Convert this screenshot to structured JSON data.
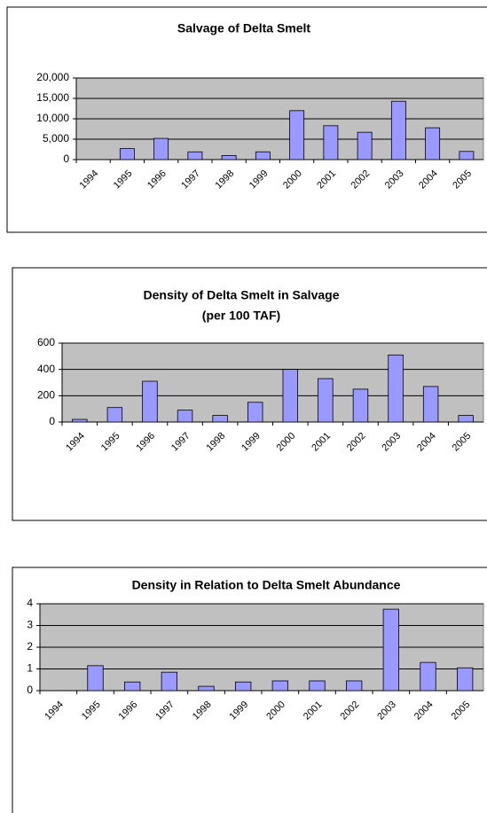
{
  "chart_data": [
    {
      "type": "bar",
      "title": "Salvage of Delta Smelt",
      "categories": [
        "1994",
        "1995",
        "1996",
        "1997",
        "1998",
        "1999",
        "2000",
        "2001",
        "2002",
        "2003",
        "2004",
        "2005"
      ],
      "values": [
        0,
        2700,
        5200,
        1900,
        1000,
        1900,
        12000,
        8300,
        6700,
        14300,
        7800,
        2000
      ],
      "color": "#9999ff",
      "ylim": [
        0,
        20000
      ],
      "yticks": [
        0,
        {
          "value": 5000,
          "label": "5,000"
        },
        {
          "value": 10000,
          "label": "10,000"
        },
        {
          "value": 15000,
          "label": "15,000"
        },
        {
          "value": 20000,
          "label": "20,000"
        }
      ],
      "grid": true
    },
    {
      "type": "bar",
      "title": "Density of Delta Smelt in Salvage",
      "subtitle": "(per 100 TAF)",
      "categories": [
        "1994",
        "1995",
        "1996",
        "1997",
        "1998",
        "1999",
        "2000",
        "2001",
        "2002",
        "2003",
        "2004",
        "2005"
      ],
      "values": [
        20,
        110,
        310,
        90,
        50,
        150,
        400,
        330,
        250,
        510,
        270,
        50
      ],
      "color": "#9999ff",
      "ylim": [
        0,
        600
      ],
      "yticks": [
        0,
        200,
        400,
        600
      ],
      "grid": true
    },
    {
      "type": "bar",
      "title": "Density in Relation to Delta Smelt Abundance",
      "categories": [
        "1994",
        "1995",
        "1996",
        "1997",
        "1998",
        "1999",
        "2000",
        "2001",
        "2002",
        "2003",
        "2004",
        "2005"
      ],
      "values": [
        0,
        1.15,
        0.4,
        0.85,
        0.2,
        0.4,
        0.45,
        0.45,
        0.45,
        3.75,
        1.3,
        1.05
      ],
      "color": "#9999ff",
      "ylim": [
        0,
        4
      ],
      "yticks": [
        0,
        1,
        2,
        3,
        4
      ],
      "grid": true
    }
  ]
}
